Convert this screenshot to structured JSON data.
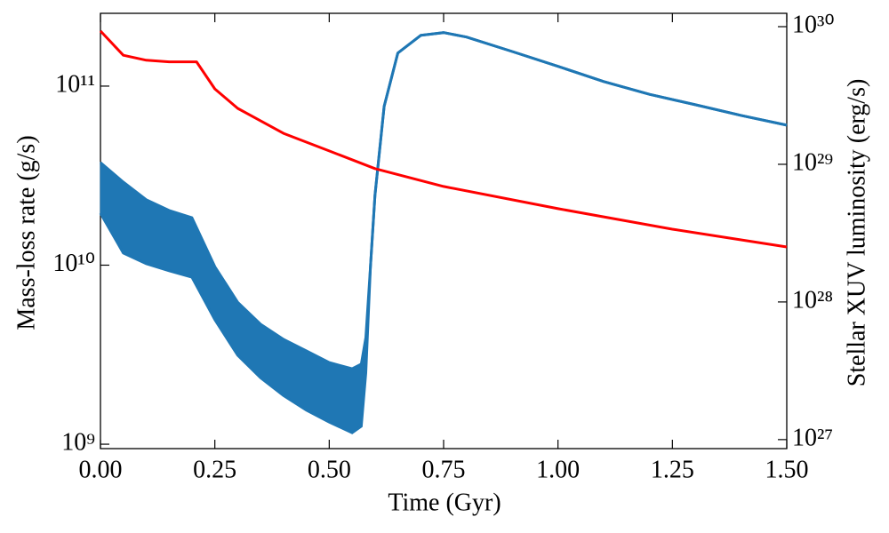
{
  "chart_data": {
    "type": "line",
    "xlabel": "Time (Gyr)",
    "ylabel": "Mass-loss rate (g/s)",
    "y2label": "Stellar XUV luminosity (erg/s)",
    "xlim": [
      0,
      1.5
    ],
    "xticks": [
      {
        "value": 0,
        "label": "0.00"
      },
      {
        "value": 0.25,
        "label": "0.25"
      },
      {
        "value": 0.5,
        "label": "0.50"
      },
      {
        "value": 0.75,
        "label": "0.75"
      },
      {
        "value": 1,
        "label": "1.00"
      },
      {
        "value": 1.25,
        "label": "1.25"
      },
      {
        "value": 1.5,
        "label": "1.50"
      }
    ],
    "ylim": [
      945000000.0,
      255000000000.0
    ],
    "ylog": true,
    "yticks": [
      {
        "value": 1000000000.0,
        "label": "10⁹"
      },
      {
        "value": 10000000000.0,
        "label": "10¹⁰"
      },
      {
        "value": 100000000000.0,
        "label": "10¹¹"
      }
    ],
    "y2lim": [
      8.6e+26,
      1.25e+30
    ],
    "y2log": true,
    "y2ticks": [
      {
        "value": 1e+27,
        "label": "10²⁷"
      },
      {
        "value": 1e+28,
        "label": "10²⁸"
      },
      {
        "value": 1e+29,
        "label": "10²⁹"
      },
      {
        "value": 1e+30,
        "label": "10³⁰"
      }
    ],
    "series": [
      {
        "color": "#1f77b4",
        "x": [
          0,
          0.05,
          0.1,
          0.15,
          0.2,
          0.25,
          0.3,
          0.35,
          0.4,
          0.45,
          0.5,
          0.55,
          0.57,
          0.58,
          0.59,
          0.6,
          0.62,
          0.65,
          0.7,
          0.75,
          0.8,
          0.9,
          1.0,
          1.1,
          1.2,
          1.3,
          1.4,
          1.5
        ],
        "values": [
          37400000000.0,
          29100000000.0,
          23200000000.0,
          20200000000.0,
          18400000000.0,
          9800000000.0,
          6200000000.0,
          4680000000.0,
          3850000000.0,
          3320000000.0,
          2860000000.0,
          2640000000.0,
          2800000000.0,
          3940000000.0,
          9800000000.0,
          24600000000.0,
          77000000000.0,
          153000000000.0,
          192000000000.0,
          199000000000.0,
          188000000000.0,
          156000000000.0,
          129000000000.0,
          106000000000.0,
          90000000000.0,
          78700000000.0,
          68600000000.0,
          60500000000.0
        ],
        "lower": [
          19500000000.0,
          11700000000.0,
          10200000000.0,
          9300000000.0,
          8570000000.0,
          4960000000.0,
          3140000000.0,
          2350000000.0,
          1870000000.0,
          1550000000.0,
          1330000000.0,
          1160000000.0,
          1260000000.0,
          2500000000.0,
          9800000000.0,
          24600000000.0,
          77000000000.0,
          153000000000.0,
          192000000000.0,
          199000000000.0,
          188000000000.0,
          156000000000.0,
          129000000000.0,
          106000000000.0,
          90000000000.0,
          78700000000.0,
          68600000000.0,
          60500000000.0
        ]
      },
      {
        "color": "#ff0000",
        "axis": "y2",
        "x": [
          0,
          0.05,
          0.1,
          0.15,
          0.21,
          0.25,
          0.3,
          0.4,
          0.5,
          0.6,
          0.75,
          1.0,
          1.25,
          1.5
        ],
        "values": [
          9.3e+29,
          6.2e+29,
          5.7e+29,
          5.55e+29,
          5.55e+29,
          3.53e+29,
          2.55e+29,
          1.68e+29,
          1.25e+29,
          9.3e+28,
          6.9e+28,
          4.76e+28,
          3.38e+28,
          2.51e+28
        ]
      }
    ]
  }
}
